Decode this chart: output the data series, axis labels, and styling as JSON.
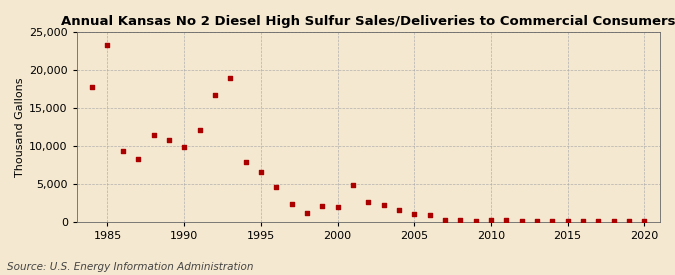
{
  "title": "Annual Kansas No 2 Diesel High Sulfur Sales/Deliveries to Commercial Consumers",
  "ylabel": "Thousand Gallons",
  "source": "Source: U.S. Energy Information Administration",
  "background_color": "#f5e8d0",
  "plot_bg_color": "#f5e8d0",
  "marker_color": "#aa0000",
  "years": [
    1984,
    1985,
    1986,
    1987,
    1988,
    1989,
    1990,
    1991,
    1992,
    1993,
    1994,
    1995,
    1996,
    1997,
    1998,
    1999,
    2000,
    2001,
    2002,
    2003,
    2004,
    2005,
    2006,
    2007,
    2008,
    2009,
    2010,
    2011,
    2012,
    2013,
    2014,
    2015,
    2016,
    2017,
    2018,
    2019,
    2020
  ],
  "values": [
    17700,
    23300,
    9300,
    8200,
    11400,
    10800,
    9800,
    12100,
    16700,
    18900,
    7900,
    6500,
    4600,
    2400,
    1200,
    2100,
    2000,
    4900,
    2600,
    2200,
    1600,
    1000,
    900,
    200,
    200,
    150,
    200,
    200,
    100,
    100,
    100,
    150,
    100,
    100,
    100,
    100,
    50
  ],
  "xlim": [
    1983,
    2021
  ],
  "ylim": [
    0,
    25000
  ],
  "yticks": [
    0,
    5000,
    10000,
    15000,
    20000,
    25000
  ],
  "xticks": [
    1985,
    1990,
    1995,
    2000,
    2005,
    2010,
    2015,
    2020
  ],
  "title_fontsize": 9.5,
  "label_fontsize": 8,
  "tick_fontsize": 8,
  "source_fontsize": 7.5
}
